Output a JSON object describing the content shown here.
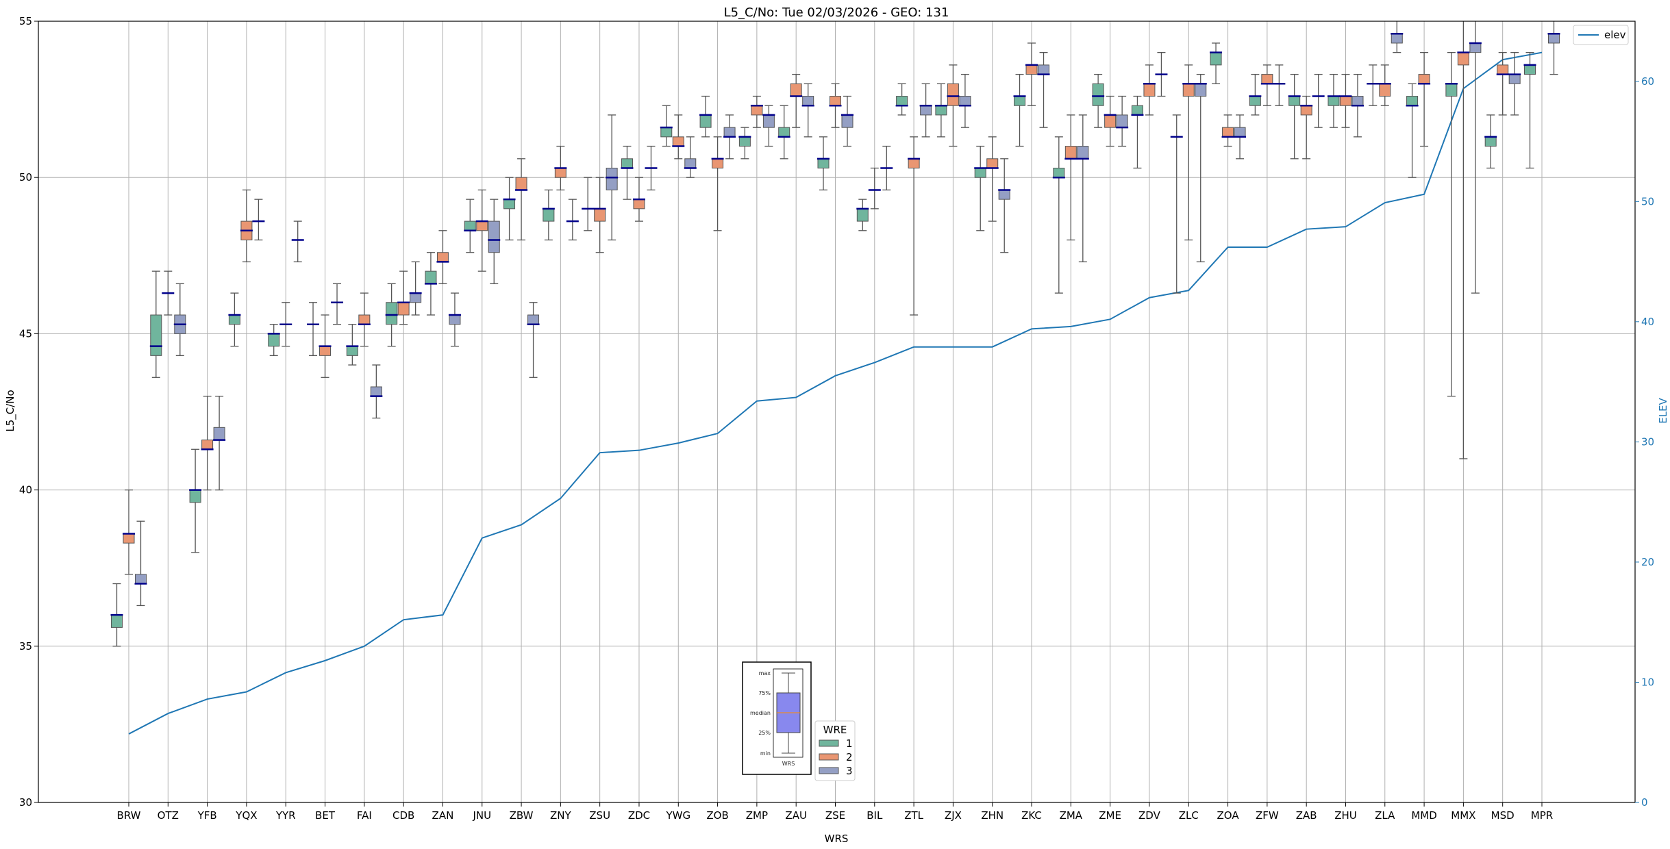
{
  "chart_data": {
    "type": "box",
    "title": "L5_C/No: Tue 02/03/2026 - GEO: 131",
    "xlabel": "WRS",
    "ylabel": "L5_C/No",
    "y2label": "ELEV",
    "ylim": [
      30,
      55
    ],
    "y2lim": [
      0,
      65
    ],
    "yticks": [
      30,
      35,
      40,
      45,
      50,
      55
    ],
    "y2ticks": [
      0,
      10,
      20,
      30,
      40,
      50,
      60
    ],
    "grid": true,
    "categories": [
      "BRW",
      "OTZ",
      "YFB",
      "YQX",
      "YYR",
      "BET",
      "FAI",
      "CDB",
      "ZAN",
      "JNU",
      "ZBW",
      "ZNY",
      "ZSU",
      "ZDC",
      "YWG",
      "ZOB",
      "ZMP",
      "ZAU",
      "ZSE",
      "BIL",
      "ZTL",
      "ZJX",
      "ZHN",
      "ZKC",
      "ZMA",
      "ZME",
      "ZDV",
      "ZLC",
      "ZOA",
      "ZFW",
      "ZAB",
      "ZHU",
      "ZLA",
      "MMD",
      "MMX",
      "MSD",
      "MPR"
    ],
    "stat_order": [
      "min",
      "q1",
      "median",
      "q3",
      "max"
    ],
    "legend_title": "WRE",
    "legend_placement": "bottom-center",
    "series": [
      {
        "name": "1",
        "color": "#70b59d",
        "stats": [
          [
            35.0,
            35.6,
            36.0,
            36.0,
            37.0
          ],
          [
            43.6,
            44.3,
            44.6,
            45.6,
            47.0
          ],
          [
            38.0,
            39.6,
            40.0,
            40.0,
            41.3
          ],
          [
            44.6,
            45.3,
            45.6,
            45.6,
            46.3
          ],
          [
            44.3,
            44.6,
            45.0,
            45.0,
            45.3
          ],
          [
            44.3,
            45.3,
            45.3,
            45.3,
            46.0
          ],
          [
            44.0,
            44.3,
            44.6,
            44.6,
            45.3
          ],
          [
            44.6,
            45.3,
            45.6,
            46.0,
            46.6
          ],
          [
            45.6,
            46.6,
            46.6,
            47.0,
            47.6
          ],
          [
            47.6,
            48.3,
            48.3,
            48.6,
            49.3
          ],
          [
            48.0,
            49.0,
            49.3,
            49.3,
            50.0
          ],
          [
            48.0,
            48.6,
            49.0,
            49.0,
            49.6
          ],
          [
            48.3,
            49.0,
            49.0,
            49.0,
            50.0
          ],
          [
            49.3,
            50.3,
            50.3,
            50.6,
            51.0
          ],
          [
            51.0,
            51.3,
            51.6,
            51.6,
            52.3
          ],
          [
            51.3,
            51.6,
            52.0,
            52.0,
            52.6
          ],
          [
            50.6,
            51.0,
            51.3,
            51.3,
            51.6
          ],
          [
            50.6,
            51.3,
            51.3,
            51.6,
            52.3
          ],
          [
            49.6,
            50.3,
            50.6,
            50.6,
            51.3
          ],
          [
            48.3,
            48.6,
            49.0,
            49.0,
            49.3
          ],
          [
            52.0,
            52.3,
            52.3,
            52.6,
            53.0
          ],
          [
            51.3,
            52.0,
            52.3,
            52.3,
            53.0
          ],
          [
            48.3,
            50.0,
            50.3,
            50.3,
            51.0
          ],
          [
            51.0,
            52.3,
            52.6,
            52.6,
            53.3
          ],
          [
            46.3,
            50.0,
            50.0,
            50.3,
            51.3
          ],
          [
            51.6,
            52.3,
            52.6,
            53.0,
            53.3
          ],
          [
            50.3,
            52.0,
            52.0,
            52.3,
            52.6
          ],
          [
            46.3,
            51.3,
            51.3,
            51.3,
            52.0
          ],
          [
            53.0,
            53.6,
            54.0,
            54.0,
            54.3
          ],
          [
            52.0,
            52.3,
            52.6,
            52.6,
            53.3
          ],
          [
            50.6,
            52.3,
            52.6,
            52.6,
            53.3
          ],
          [
            51.6,
            52.3,
            52.6,
            52.6,
            53.3
          ],
          [
            52.3,
            53.0,
            53.0,
            53.0,
            53.6
          ],
          [
            50.0,
            52.3,
            52.3,
            52.6,
            53.0
          ],
          [
            43.0,
            52.6,
            53.0,
            53.0,
            54.0
          ],
          [
            50.3,
            51.0,
            51.3,
            51.3,
            52.0
          ],
          [
            50.3,
            53.3,
            53.6,
            53.6,
            54.0
          ]
        ]
      },
      {
        "name": "2",
        "color": "#e99672",
        "stats": [
          [
            37.3,
            38.3,
            38.6,
            38.6,
            40.0
          ],
          [
            45.6,
            46.3,
            46.3,
            46.3,
            47.0
          ],
          [
            40.0,
            41.3,
            41.3,
            41.6,
            43.0
          ],
          [
            47.3,
            48.0,
            48.3,
            48.6,
            49.6
          ],
          [
            44.6,
            45.3,
            45.3,
            45.3,
            46.0
          ],
          [
            43.6,
            44.3,
            44.6,
            44.6,
            45.6
          ],
          [
            44.6,
            45.3,
            45.3,
            45.6,
            46.3
          ],
          [
            45.3,
            45.6,
            46.0,
            46.0,
            47.0
          ],
          [
            46.6,
            47.3,
            47.3,
            47.6,
            48.3
          ],
          [
            47.0,
            48.3,
            48.6,
            48.6,
            49.6
          ],
          [
            48.0,
            49.6,
            49.6,
            50.0,
            50.6
          ],
          [
            49.6,
            50.0,
            50.3,
            50.3,
            51.0
          ],
          [
            47.6,
            48.6,
            49.0,
            49.0,
            50.0
          ],
          [
            48.6,
            49.0,
            49.3,
            49.3,
            50.0
          ],
          [
            50.6,
            51.0,
            51.0,
            51.3,
            52.0
          ],
          [
            48.3,
            50.3,
            50.6,
            50.6,
            51.3
          ],
          [
            51.6,
            52.0,
            52.3,
            52.3,
            52.6
          ],
          [
            51.6,
            52.6,
            52.6,
            53.0,
            53.3
          ],
          [
            51.6,
            52.3,
            52.3,
            52.6,
            53.0
          ],
          [
            49.0,
            49.6,
            49.6,
            49.6,
            50.3
          ],
          [
            45.6,
            50.3,
            50.6,
            50.6,
            51.3
          ],
          [
            51.0,
            52.3,
            52.6,
            53.0,
            53.6
          ],
          [
            48.6,
            50.3,
            50.3,
            50.6,
            51.3
          ],
          [
            52.3,
            53.3,
            53.6,
            53.6,
            54.3
          ],
          [
            48.0,
            50.6,
            50.6,
            51.0,
            52.0
          ],
          [
            51.0,
            51.6,
            52.0,
            52.0,
            52.6
          ],
          [
            52.0,
            52.6,
            53.0,
            53.0,
            53.6
          ],
          [
            48.0,
            52.6,
            53.0,
            53.0,
            53.6
          ],
          [
            51.0,
            51.3,
            51.3,
            51.6,
            52.0
          ],
          [
            52.3,
            53.0,
            53.0,
            53.3,
            53.6
          ],
          [
            50.6,
            52.0,
            52.3,
            52.3,
            52.6
          ],
          [
            51.6,
            52.3,
            52.6,
            52.6,
            53.3
          ],
          [
            52.3,
            52.6,
            53.0,
            53.0,
            53.6
          ],
          [
            51.0,
            53.0,
            53.0,
            53.3,
            54.0
          ],
          [
            41.0,
            53.6,
            54.0,
            54.0,
            55.5
          ],
          [
            52.0,
            53.3,
            53.3,
            53.6,
            54.0
          ],
          null
        ]
      },
      {
        "name": "3",
        "color": "#949fc4",
        "stats": [
          [
            36.3,
            37.0,
            37.0,
            37.3,
            39.0
          ],
          [
            44.3,
            45.0,
            45.3,
            45.6,
            46.6
          ],
          [
            40.0,
            41.6,
            41.6,
            42.0,
            43.0
          ],
          [
            48.0,
            48.6,
            48.6,
            48.6,
            49.3
          ],
          [
            47.3,
            48.0,
            48.0,
            48.0,
            48.6
          ],
          [
            45.3,
            46.0,
            46.0,
            46.0,
            46.6
          ],
          [
            42.3,
            43.0,
            43.0,
            43.3,
            44.0
          ],
          [
            45.6,
            46.0,
            46.3,
            46.3,
            47.3
          ],
          [
            44.6,
            45.3,
            45.6,
            45.6,
            46.3
          ],
          [
            46.6,
            47.6,
            48.0,
            48.6,
            49.3
          ],
          [
            43.6,
            45.3,
            45.3,
            45.6,
            46.0
          ],
          [
            48.0,
            48.6,
            48.6,
            48.6,
            49.3
          ],
          [
            48.0,
            49.6,
            50.0,
            50.3,
            52.0
          ],
          [
            49.6,
            50.3,
            50.3,
            50.3,
            51.0
          ],
          [
            50.0,
            50.3,
            50.3,
            50.6,
            51.3
          ],
          [
            50.6,
            51.3,
            51.3,
            51.6,
            52.0
          ],
          [
            51.0,
            51.6,
            52.0,
            52.0,
            52.3
          ],
          [
            51.3,
            52.3,
            52.3,
            52.6,
            53.0
          ],
          [
            51.0,
            51.6,
            52.0,
            52.0,
            52.6
          ],
          [
            49.6,
            50.3,
            50.3,
            50.3,
            51.0
          ],
          [
            51.3,
            52.0,
            52.3,
            52.3,
            53.0
          ],
          [
            51.6,
            52.3,
            52.3,
            52.6,
            53.3
          ],
          [
            47.6,
            49.3,
            49.6,
            49.6,
            50.6
          ],
          [
            51.6,
            53.3,
            53.3,
            53.6,
            54.0
          ],
          [
            47.3,
            50.6,
            50.6,
            51.0,
            52.0
          ],
          [
            51.0,
            51.6,
            51.6,
            52.0,
            52.6
          ],
          [
            52.6,
            53.3,
            53.3,
            53.3,
            54.0
          ],
          [
            47.3,
            52.6,
            53.0,
            53.0,
            53.3
          ],
          [
            50.6,
            51.3,
            51.3,
            51.6,
            52.0
          ],
          [
            52.3,
            53.0,
            53.0,
            53.0,
            53.6
          ],
          [
            51.6,
            52.6,
            52.6,
            52.6,
            53.3
          ],
          [
            51.3,
            52.3,
            52.3,
            52.6,
            53.3
          ],
          [
            54.0,
            54.3,
            54.6,
            54.6,
            55.5
          ],
          null,
          [
            46.3,
            54.0,
            54.3,
            54.3,
            55.5
          ],
          [
            52.0,
            53.0,
            53.3,
            53.3,
            54.0
          ],
          [
            53.3,
            54.3,
            54.6,
            54.6,
            55.5
          ]
        ]
      }
    ],
    "elev": {
      "name": "elev",
      "color": "#1f77b4",
      "axis": "right",
      "legend_placement": "top-right",
      "values": [
        5.7,
        7.4,
        8.6,
        9.2,
        10.8,
        11.8,
        13.0,
        15.2,
        15.6,
        22.0,
        23.1,
        25.3,
        29.1,
        29.3,
        29.9,
        30.7,
        33.4,
        33.7,
        35.5,
        36.6,
        37.9,
        37.9,
        37.9,
        39.4,
        39.6,
        40.2,
        42.0,
        42.6,
        46.2,
        46.2,
        47.7,
        47.9,
        49.9,
        50.6,
        59.4,
        61.8,
        62.4
      ]
    },
    "legend_inset": {
      "labels": [
        "max",
        "75%",
        "median",
        "25%",
        "min"
      ],
      "xlabel": "WRS",
      "box_color": "#8888ee",
      "median_color": "#ff8c00"
    },
    "median_color": "#00008b"
  }
}
